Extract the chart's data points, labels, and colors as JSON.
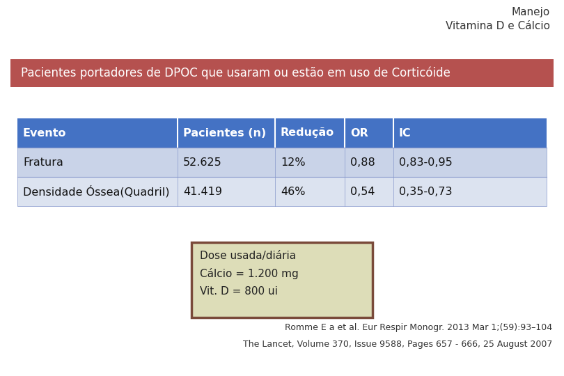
{
  "title_line1": "Manejo",
  "title_line2": "Vitamina D e Cálcio",
  "banner_text": "Pacientes portadores de DPOC que usaram ou estão em uso de Corticóide",
  "banner_bg": "#b5514f",
  "banner_text_color": "#ffffff",
  "table_header": [
    "Evento",
    "Pacientes (n)",
    "Redução",
    "OR",
    "IC"
  ],
  "table_rows": [
    [
      "Fratura",
      "52.625",
      "12%",
      "0,88",
      "0,83-0,95"
    ],
    [
      "Densidade Óssea(Quadril)",
      "41.419",
      "46%",
      "0,54",
      "0,35-0,73"
    ]
  ],
  "table_header_bg": "#4472c4",
  "table_header_text_color": "#ffffff",
  "table_row1_bg": "#c9d3e8",
  "table_row2_bg": "#dce3f0",
  "table_row_text_color": "#111111",
  "table_border_color": "#8899cc",
  "dose_box_text": "Dose usada/diária\nCálcio = 1.200 mg\nVit. D = 800 ui",
  "dose_box_bg": "#ddddb8",
  "dose_box_border": "#7a4a3a",
  "ref1": "Romme E a et al. Eur Respir Monogr. 2013 Mar 1;(59):93–104",
  "ref2": "The Lancet, Volume 370, Issue 9588, Pages 657 - 666, 25 August 2007",
  "background_color": "#ffffff"
}
